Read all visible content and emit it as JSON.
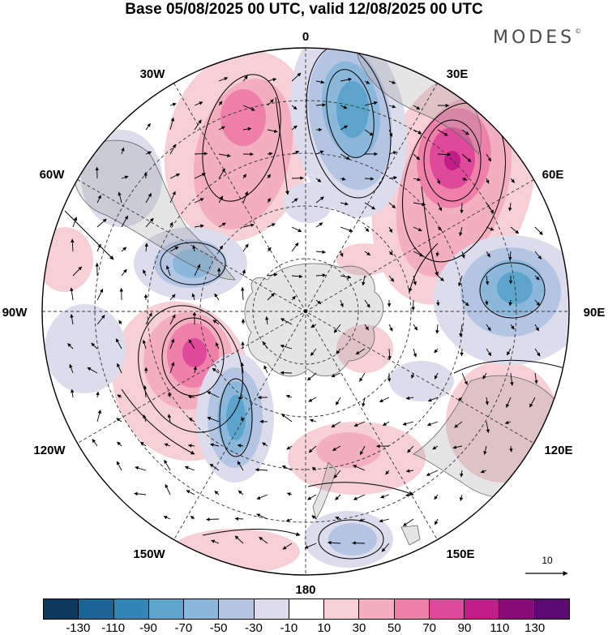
{
  "title": "Base 05/08/2025 00 UTC, valid 12/08/2025 00 UTC",
  "brand": "MODES",
  "brand_mark": "©",
  "longitude_labels": [
    "0",
    "30E",
    "60E",
    "90E",
    "120E",
    "150E",
    "180",
    "150W",
    "120W",
    "90W",
    "60W",
    "30W"
  ],
  "vector_scale_label": "10",
  "colorbar": {
    "colors": [
      "#0d3a5a",
      "#1b6595",
      "#2f87b6",
      "#5ca4cc",
      "#8ab7da",
      "#b3c5e2",
      "#dcdcec",
      "#ffffff",
      "#f6d0d4",
      "#f3aebf",
      "#ee80aa",
      "#e0489a",
      "#c01d86",
      "#8a0b7a",
      "#5a0a70"
    ],
    "ticks": [
      "-130",
      "-110",
      "-90",
      "-70",
      "-50",
      "-30",
      "-10",
      "10",
      "30",
      "50",
      "70",
      "90",
      "110",
      "130"
    ]
  }
}
